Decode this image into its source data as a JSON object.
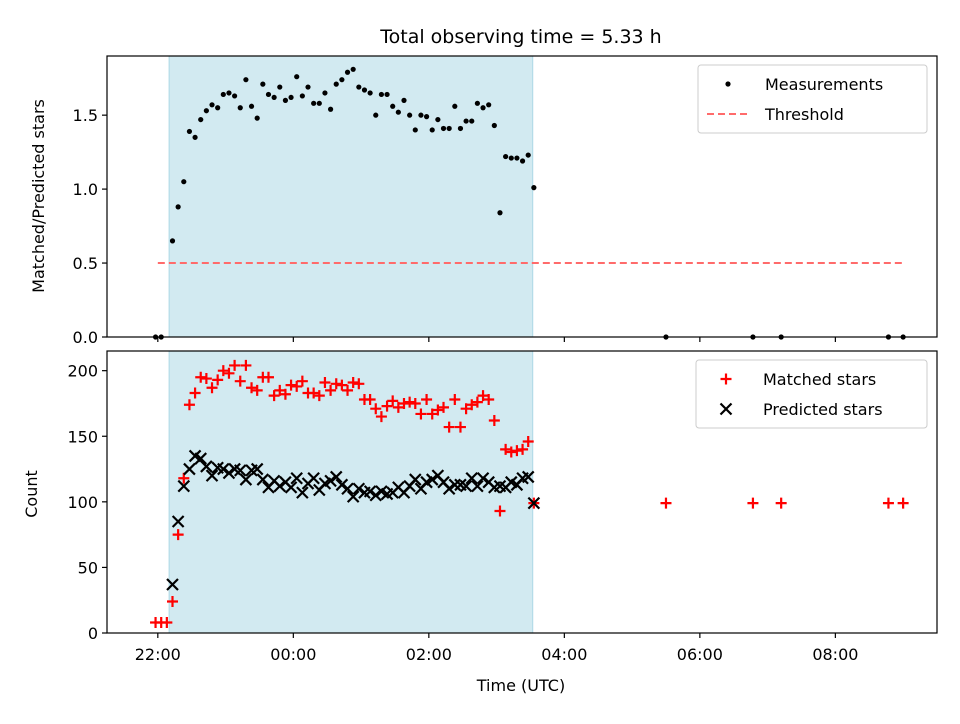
{
  "title": "Total observing time = 5.33 h",
  "xlabel": "Time (UTC)",
  "colors": {
    "shade": "#add8e6",
    "measure": "#000000",
    "threshold": "#ff6b6b",
    "matched": "#ff0000",
    "predicted": "#000000"
  },
  "x_tick_labels": [
    "22:00",
    "00:00",
    "02:00",
    "04:00",
    "06:00",
    "08:00"
  ],
  "chart_data": [
    {
      "type": "scatter",
      "ylabel": "Matched/Predicted stars",
      "ylim": [
        0,
        1.9
      ],
      "y_ticks": [
        "0.0",
        "0.5",
        "1.0",
        "1.5"
      ],
      "legend": {
        "position": "top-right",
        "entries": [
          "Measurements",
          "Threshold"
        ]
      },
      "shaded_interval": {
        "start": "22:10",
        "end": "03:32"
      },
      "threshold": {
        "value": 0.5,
        "start": "22:00",
        "end": "09:00"
      },
      "series": [
        {
          "name": "Measurements",
          "marker": "dot",
          "points": [
            [
              "21:58",
              0
            ],
            [
              "22:03",
              0
            ],
            [
              "22:13",
              0.65
            ],
            [
              "22:18",
              0.88
            ],
            [
              "22:23",
              1.05
            ],
            [
              "22:28",
              1.39
            ],
            [
              "22:33",
              1.35
            ],
            [
              "22:38",
              1.47
            ],
            [
              "22:43",
              1.53
            ],
            [
              "22:48",
              1.57
            ],
            [
              "22:53",
              1.55
            ],
            [
              "22:58",
              1.64
            ],
            [
              "23:03",
              1.65
            ],
            [
              "23:08",
              1.63
            ],
            [
              "23:13",
              1.55
            ],
            [
              "23:18",
              1.74
            ],
            [
              "23:23",
              1.56
            ],
            [
              "23:28",
              1.48
            ],
            [
              "23:33",
              1.71
            ],
            [
              "23:38",
              1.64
            ],
            [
              "23:43",
              1.62
            ],
            [
              "23:48",
              1.69
            ],
            [
              "23:53",
              1.6
            ],
            [
              "23:58",
              1.62
            ],
            [
              "00:03",
              1.76
            ],
            [
              "00:08",
              1.63
            ],
            [
              "00:13",
              1.69
            ],
            [
              "00:18",
              1.58
            ],
            [
              "00:23",
              1.58
            ],
            [
              "00:28",
              1.65
            ],
            [
              "00:33",
              1.54
            ],
            [
              "00:38",
              1.71
            ],
            [
              "00:43",
              1.74
            ],
            [
              "00:48",
              1.79
            ],
            [
              "00:53",
              1.81
            ],
            [
              "00:58",
              1.69
            ],
            [
              "01:03",
              1.67
            ],
            [
              "01:08",
              1.65
            ],
            [
              "01:13",
              1.5
            ],
            [
              "01:18",
              1.64
            ],
            [
              "01:23",
              1.64
            ],
            [
              "01:28",
              1.56
            ],
            [
              "01:33",
              1.52
            ],
            [
              "01:38",
              1.6
            ],
            [
              "01:43",
              1.5
            ],
            [
              "01:48",
              1.4
            ],
            [
              "01:53",
              1.5
            ],
            [
              "01:58",
              1.49
            ],
            [
              "02:03",
              1.4
            ],
            [
              "02:08",
              1.47
            ],
            [
              "02:13",
              1.41
            ],
            [
              "02:18",
              1.41
            ],
            [
              "02:23",
              1.56
            ],
            [
              "02:28",
              1.41
            ],
            [
              "02:33",
              1.46
            ],
            [
              "02:38",
              1.46
            ],
            [
              "02:43",
              1.58
            ],
            [
              "02:48",
              1.55
            ],
            [
              "02:53",
              1.57
            ],
            [
              "02:58",
              1.43
            ],
            [
              "03:03",
              0.84
            ],
            [
              "03:08",
              1.22
            ],
            [
              "03:13",
              1.21
            ],
            [
              "03:18",
              1.21
            ],
            [
              "03:23",
              1.19
            ],
            [
              "03:28",
              1.23
            ],
            [
              "03:33",
              1.01
            ],
            [
              "05:30",
              0
            ],
            [
              "06:47",
              0
            ],
            [
              "07:12",
              0
            ],
            [
              "08:47",
              0
            ],
            [
              "09:00",
              0
            ]
          ]
        }
      ]
    },
    {
      "type": "scatter",
      "ylabel": "Count",
      "ylim": [
        0,
        215
      ],
      "y_ticks": [
        "0",
        "50",
        "100",
        "150",
        "200"
      ],
      "legend": {
        "position": "top-right",
        "entries": [
          "Matched stars",
          "Predicted stars"
        ]
      },
      "shaded_interval": {
        "start": "22:10",
        "end": "03:32"
      },
      "series": [
        {
          "name": "Matched stars",
          "marker": "plus",
          "points": [
            [
              "21:58",
              8
            ],
            [
              "22:03",
              8
            ],
            [
              "22:08",
              8
            ],
            [
              "22:13",
              24
            ],
            [
              "22:18",
              75
            ],
            [
              "22:23",
              118
            ],
            [
              "22:28",
              174
            ],
            [
              "22:33",
              183
            ],
            [
              "22:38",
              195
            ],
            [
              "22:43",
              194
            ],
            [
              "22:48",
              187
            ],
            [
              "22:53",
              193
            ],
            [
              "22:58",
              200
            ],
            [
              "23:03",
              198
            ],
            [
              "23:08",
              204
            ],
            [
              "23:13",
              192
            ],
            [
              "23:18",
              204
            ],
            [
              "23:23",
              187
            ],
            [
              "23:28",
              185
            ],
            [
              "23:33",
              195
            ],
            [
              "23:38",
              195
            ],
            [
              "23:43",
              181
            ],
            [
              "23:48",
              185
            ],
            [
              "23:53",
              182
            ],
            [
              "23:58",
              189
            ],
            [
              "00:03",
              188
            ],
            [
              "00:08",
              192
            ],
            [
              "00:13",
              183
            ],
            [
              "00:18",
              183
            ],
            [
              "00:23",
              181
            ],
            [
              "00:28",
              191
            ],
            [
              "00:33",
              185
            ],
            [
              "00:38",
              190
            ],
            [
              "00:43",
              189
            ],
            [
              "00:48",
              185
            ],
            [
              "00:53",
              191
            ],
            [
              "00:58",
              190
            ],
            [
              "01:03",
              178
            ],
            [
              "01:08",
              178
            ],
            [
              "01:13",
              171
            ],
            [
              "01:18",
              165
            ],
            [
              "01:23",
              173
            ],
            [
              "01:28",
              177
            ],
            [
              "01:33",
              172
            ],
            [
              "01:38",
              175
            ],
            [
              "01:43",
              176
            ],
            [
              "01:48",
              175
            ],
            [
              "01:53",
              167
            ],
            [
              "01:58",
              178
            ],
            [
              "02:03",
              167
            ],
            [
              "02:08",
              170
            ],
            [
              "02:13",
              172
            ],
            [
              "02:18",
              157
            ],
            [
              "02:23",
              178
            ],
            [
              "02:28",
              157
            ],
            [
              "02:33",
              171
            ],
            [
              "02:38",
              174
            ],
            [
              "02:43",
              176
            ],
            [
              "02:48",
              181
            ],
            [
              "02:53",
              178
            ],
            [
              "02:58",
              162
            ],
            [
              "03:03",
              93
            ],
            [
              "03:08",
              140
            ],
            [
              "03:13",
              138
            ],
            [
              "03:18",
              139
            ],
            [
              "03:23",
              140
            ],
            [
              "03:28",
              146
            ],
            [
              "03:33",
              99
            ],
            [
              "05:30",
              99
            ],
            [
              "06:47",
              99
            ],
            [
              "07:12",
              99
            ],
            [
              "08:47",
              99
            ],
            [
              "09:00",
              99
            ]
          ]
        },
        {
          "name": "Predicted stars",
          "marker": "x",
          "points": [
            [
              "22:13",
              37
            ],
            [
              "22:18",
              85
            ],
            [
              "22:23",
              112
            ],
            [
              "22:28",
              125
            ],
            [
              "22:33",
              135
            ],
            [
              "22:38",
              133
            ],
            [
              "22:43",
              127
            ],
            [
              "22:48",
              120
            ],
            [
              "22:53",
              126
            ],
            [
              "22:58",
              125
            ],
            [
              "23:03",
              122
            ],
            [
              "23:08",
              125
            ],
            [
              "23:13",
              124
            ],
            [
              "23:18",
              117
            ],
            [
              "23:23",
              124
            ],
            [
              "23:28",
              125
            ],
            [
              "23:33",
              117
            ],
            [
              "23:38",
              111
            ],
            [
              "23:43",
              116
            ],
            [
              "23:48",
              112
            ],
            [
              "23:53",
              115
            ],
            [
              "23:58",
              111
            ],
            [
              "00:03",
              118
            ],
            [
              "00:08",
              107
            ],
            [
              "00:13",
              114
            ],
            [
              "00:18",
              118
            ],
            [
              "00:23",
              109
            ],
            [
              "00:28",
              114
            ],
            [
              "00:33",
              116
            ],
            [
              "00:38",
              119
            ],
            [
              "00:43",
              113
            ],
            [
              "00:48",
              110
            ],
            [
              "00:53",
              104
            ],
            [
              "00:58",
              110
            ],
            [
              "01:03",
              107
            ],
            [
              "01:08",
              108
            ],
            [
              "01:13",
              105
            ],
            [
              "01:18",
              108
            ],
            [
              "01:23",
              106
            ],
            [
              "01:28",
              107
            ],
            [
              "01:33",
              111
            ],
            [
              "01:38",
              107
            ],
            [
              "01:43",
              112
            ],
            [
              "01:48",
              117
            ],
            [
              "01:53",
              110
            ],
            [
              "01:58",
              115
            ],
            [
              "02:03",
              117
            ],
            [
              "02:08",
              120
            ],
            [
              "02:13",
              115
            ],
            [
              "02:18",
              110
            ],
            [
              "02:23",
              113
            ],
            [
              "02:28",
              113
            ],
            [
              "02:33",
              112
            ],
            [
              "02:38",
              118
            ],
            [
              "02:43",
              112
            ],
            [
              "02:48",
              118
            ],
            [
              "02:53",
              115
            ],
            [
              "02:58",
              111
            ],
            [
              "03:03",
              112
            ],
            [
              "03:08",
              111
            ],
            [
              "03:13",
              115
            ],
            [
              "03:18",
              113
            ],
            [
              "03:23",
              118
            ],
            [
              "03:28",
              119
            ],
            [
              "03:33",
              99
            ]
          ]
        }
      ]
    }
  ]
}
